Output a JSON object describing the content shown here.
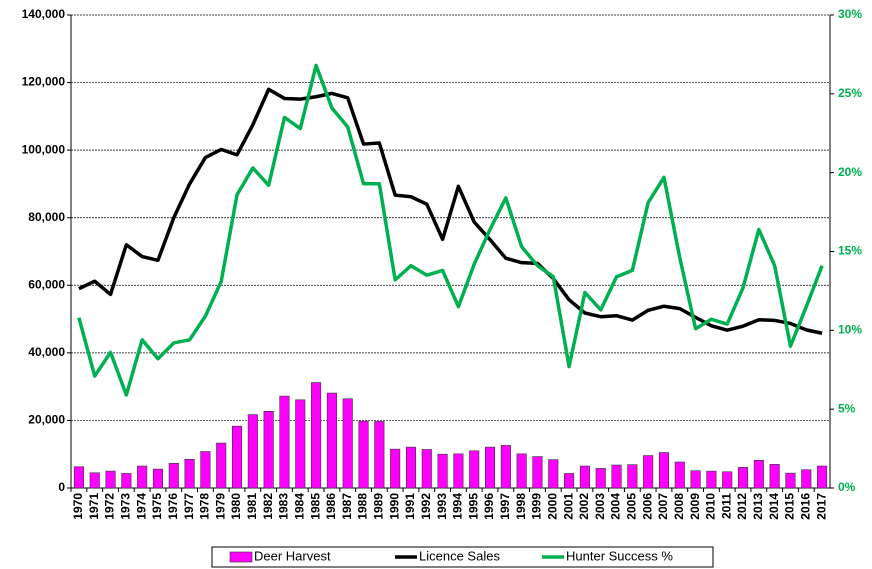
{
  "chart_data": {
    "type": "bar-line",
    "categories": [
      "1970",
      "1971",
      "1972",
      "1973",
      "1974",
      "1975",
      "1976",
      "1977",
      "1978",
      "1979",
      "1980",
      "1981",
      "1982",
      "1983",
      "1984",
      "1985",
      "1986",
      "1987",
      "1988",
      "1989",
      "1990",
      "1991",
      "1992",
      "1993",
      "1994",
      "1995",
      "1996",
      "1997",
      "1998",
      "1999",
      "2000",
      "2001",
      "2002",
      "2003",
      "2004",
      "2005",
      "2006",
      "2007",
      "2008",
      "2009",
      "2010",
      "2011",
      "2012",
      "2013",
      "2014",
      "2015",
      "2016",
      "2017"
    ],
    "series": [
      {
        "name": "Deer Harvest",
        "type": "bar",
        "color": "#ff00ff",
        "values": [
          6300,
          4500,
          5000,
          4300,
          6500,
          5600,
          7300,
          8500,
          10800,
          13300,
          18300,
          21700,
          22700,
          27200,
          26100,
          31200,
          28100,
          26400,
          19800,
          19700,
          11500,
          12100,
          11400,
          10000,
          10100,
          11000,
          12100,
          12600,
          10100,
          9300,
          8400,
          4300,
          6500,
          5800,
          6800,
          6900,
          9600,
          10500,
          7700,
          5100,
          5000,
          4800,
          6100,
          8200,
          7000,
          4400,
          5400,
          6500
        ]
      },
      {
        "name": "Licence Sales",
        "type": "line",
        "color": "#000000",
        "values": [
          59000,
          61200,
          57300,
          72000,
          68500,
          67400,
          80000,
          90000,
          97800,
          100200,
          98600,
          107500,
          118000,
          115300,
          115100,
          115800,
          116800,
          115500,
          101800,
          102100,
          86700,
          86200,
          84000,
          73600,
          89300,
          78700,
          73500,
          68000,
          66700,
          66500,
          62000,
          55700,
          51800,
          50700,
          51000,
          49700,
          52600,
          53800,
          53100,
          50500,
          48000,
          46700,
          47900,
          49800,
          49600,
          48700,
          46800,
          45800
        ]
      },
      {
        "name": "Hunter Success %",
        "type": "line",
        "axis": "y2",
        "color": "#00b050",
        "values": [
          10.8,
          7.1,
          8.6,
          5.9,
          9.4,
          8.2,
          9.2,
          9.4,
          10.9,
          13.1,
          18.6,
          20.3,
          19.2,
          23.5,
          22.8,
          26.8,
          24.1,
          22.9,
          19.3,
          19.3,
          13.2,
          14.1,
          13.5,
          13.8,
          11.5,
          14.2,
          16.4,
          18.4,
          15.3,
          14.1,
          13.4,
          7.7,
          12.4,
          11.3,
          13.4,
          13.8,
          18.1,
          19.7,
          14.6,
          10.1,
          10.7,
          10.4,
          12.7,
          16.4,
          14.1,
          9.0,
          11.5,
          14.1
        ]
      }
    ],
    "ylim": [
      0,
      140000
    ],
    "yticks": [
      0,
      {
        "value": 20000,
        "label": "20,000"
      },
      {
        "value": 40000,
        "label": "40,000"
      },
      {
        "value": 60000,
        "label": "60,000"
      },
      {
        "value": 80000,
        "label": "80,000"
      },
      {
        "value": 100000,
        "label": "100,000"
      },
      {
        "value": 120000,
        "label": "120,000"
      },
      {
        "value": 140000,
        "label": "140,000"
      }
    ],
    "y2lim": [
      0,
      30
    ],
    "y2ticks": [
      {
        "value": 0,
        "label": "0%"
      },
      {
        "value": 5,
        "label": "5%"
      },
      {
        "value": 10,
        "label": "10%"
      },
      {
        "value": 15,
        "label": "15%"
      },
      {
        "value": 20,
        "label": "20%"
      },
      {
        "value": 25,
        "label": "25%"
      },
      {
        "value": 30,
        "label": "30%"
      }
    ],
    "grid": true,
    "legend": "bottom"
  }
}
